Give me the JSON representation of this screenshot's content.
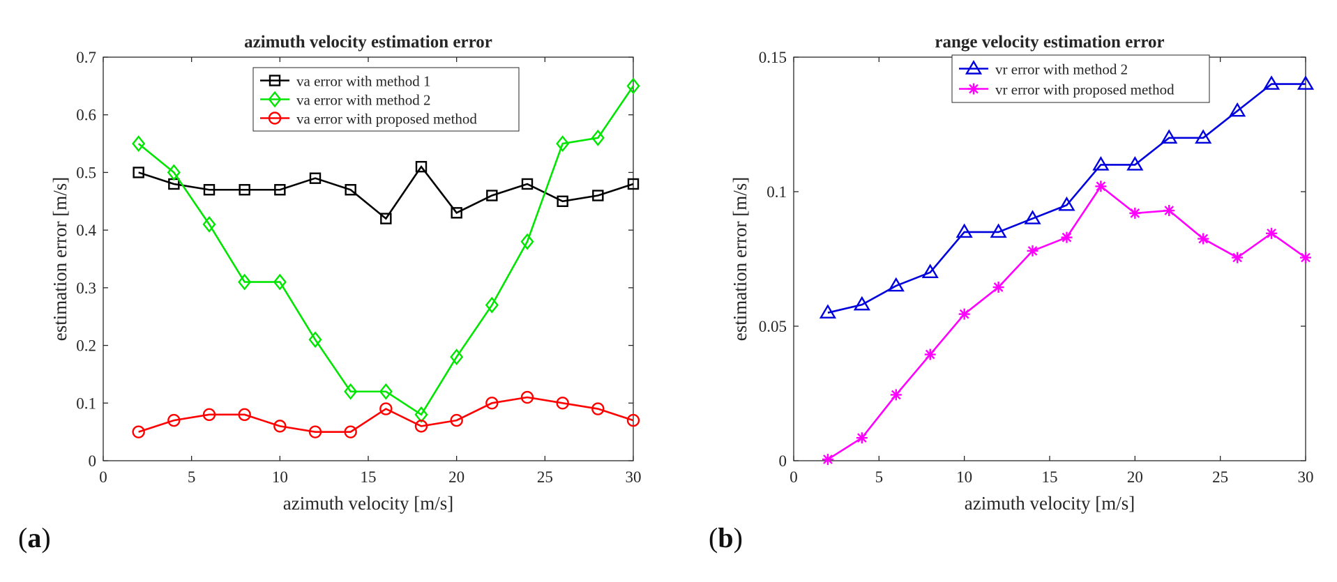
{
  "panels": [
    {
      "label_open": "(",
      "label_letter": "a",
      "label_close": ")"
    },
    {
      "label_open": "(",
      "label_letter": "b",
      "label_close": ")"
    }
  ],
  "chart_data": [
    {
      "type": "line",
      "title": "azimuth velocity estimation error",
      "xlabel": "azimuth velocity [m/s]",
      "ylabel": "estimation error [m/s]",
      "xlim": [
        0,
        30
      ],
      "ylim": [
        0,
        0.7
      ],
      "xticks": [
        0,
        5,
        10,
        15,
        20,
        25,
        30
      ],
      "xtick_labels": [
        "0",
        "5",
        "10",
        "15",
        "20",
        "25",
        "30"
      ],
      "yticks": [
        0,
        0.1,
        0.2,
        0.3,
        0.4,
        0.5,
        0.6,
        0.7
      ],
      "ytick_labels": [
        "0",
        "0.1",
        "0.2",
        "0.3",
        "0.4",
        "0.5",
        "0.6",
        "0.7"
      ],
      "grid": false,
      "legend_position": "top-center",
      "x": [
        2,
        4,
        6,
        8,
        10,
        12,
        14,
        16,
        18,
        20,
        22,
        24,
        26,
        28,
        30
      ],
      "series": [
        {
          "name": "va error with method 1",
          "color": "#000000",
          "marker": "square",
          "values": [
            0.5,
            0.48,
            0.47,
            0.47,
            0.47,
            0.49,
            0.47,
            0.42,
            0.51,
            0.43,
            0.46,
            0.48,
            0.45,
            0.46,
            0.48
          ]
        },
        {
          "name": "va error with method 2",
          "color": "#00e600",
          "marker": "diamond",
          "values": [
            0.55,
            0.5,
            0.41,
            0.31,
            0.31,
            0.21,
            0.12,
            0.12,
            0.08,
            0.18,
            0.27,
            0.38,
            0.55,
            0.56,
            0.65
          ]
        },
        {
          "name": "va error with proposed method",
          "color": "#ff0000",
          "marker": "circle",
          "values": [
            0.05,
            0.07,
            0.08,
            0.08,
            0.06,
            0.05,
            0.05,
            0.09,
            0.06,
            0.07,
            0.1,
            0.11,
            0.1,
            0.09,
            0.07
          ]
        }
      ]
    },
    {
      "type": "line",
      "title": "range velocity estimation error",
      "xlabel": "azimuth velocity [m/s]",
      "ylabel": "estimation error [m/s]",
      "xlim": [
        0,
        30
      ],
      "ylim": [
        0,
        0.15
      ],
      "xticks": [
        0,
        5,
        10,
        15,
        20,
        25,
        30
      ],
      "xtick_labels": [
        "0",
        "5",
        "10",
        "15",
        "20",
        "25",
        "30"
      ],
      "yticks": [
        0,
        0.05,
        0.1,
        0.15
      ],
      "ytick_labels": [
        "0",
        "0.05",
        "0.1",
        "0.15"
      ],
      "grid": false,
      "legend_position": "top-center",
      "x": [
        2,
        4,
        6,
        8,
        10,
        12,
        14,
        16,
        18,
        20,
        22,
        24,
        26,
        28,
        30
      ],
      "series": [
        {
          "name": "vr error with method 2",
          "color": "#0000dd",
          "marker": "triangle",
          "values": [
            0.055,
            0.058,
            0.065,
            0.07,
            0.085,
            0.085,
            0.09,
            0.095,
            0.11,
            0.11,
            0.12,
            0.12,
            0.13,
            0.14,
            0.14
          ]
        },
        {
          "name": "vr error with proposed method",
          "color": "#ff00ff",
          "marker": "asterisk",
          "values": [
            0.0005,
            0.0085,
            0.0245,
            0.0395,
            0.0545,
            0.0645,
            0.078,
            0.083,
            0.102,
            0.092,
            0.093,
            0.0825,
            0.0755,
            0.0845,
            0.0755
          ]
        }
      ]
    }
  ]
}
